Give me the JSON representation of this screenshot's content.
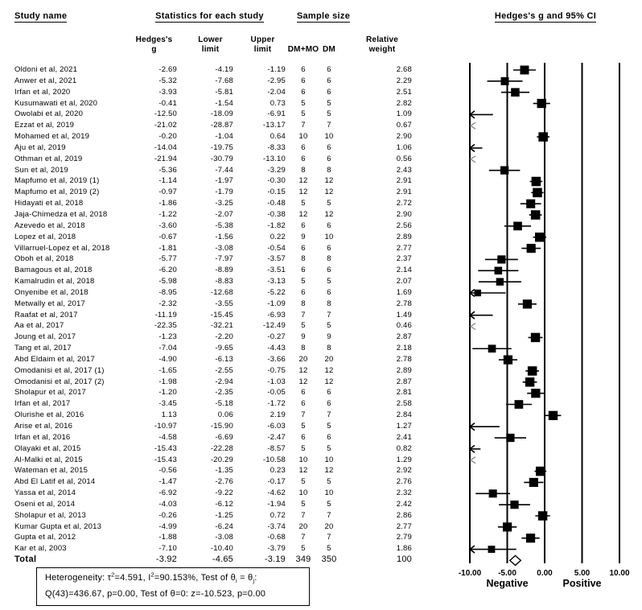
{
  "header": {
    "study_name": "Study name",
    "statistics": "Statistics for each study",
    "sample_size": "Sample size",
    "plot_title": "Hedges's g and 95% CI"
  },
  "subheaders": {
    "hedges_l1": "Hedges's",
    "hedges_l2": "g",
    "lower_l1": "Lower",
    "lower_l2": "limit",
    "upper_l1": "Upper",
    "upper_l2": "limit",
    "dm_mo": "DM+MO",
    "dm": "DM",
    "weight_l1": "Relative",
    "weight_l2": "weight"
  },
  "chart_data": {
    "type": "scatter",
    "subtype": "forest-plot",
    "title": "Hedges's g and 95% CI",
    "xlim": [
      -10,
      10
    ],
    "x_ticks": [
      "-10.00",
      "-5.00",
      "0.00",
      "5.00",
      "10.00"
    ],
    "negative_label": "Negative",
    "positive_label": "Positive",
    "legend_position": "none",
    "grid": false,
    "studies": [
      {
        "name": "Oldoni et al, 2021",
        "g": "-2.69",
        "lower": "-4.19",
        "upper": "-1.19",
        "dm_mo": "6",
        "dm": "6",
        "weight": "2.68"
      },
      {
        "name": "Anwer et al, 2021",
        "g": "-5.32",
        "lower": "-7.68",
        "upper": "-2.95",
        "dm_mo": "6",
        "dm": "6",
        "weight": "2.29"
      },
      {
        "name": "Irfan et al, 2020",
        "g": "-3.93",
        "lower": "-5.81",
        "upper": "-2.04",
        "dm_mo": "6",
        "dm": "6",
        "weight": "2.51"
      },
      {
        "name": "Kusumawati et al, 2020",
        "g": "-0.41",
        "lower": "-1.54",
        "upper": "0.73",
        "dm_mo": "5",
        "dm": "5",
        "weight": "2.82"
      },
      {
        "name": "Owolabi et al, 2020",
        "g": "-12.50",
        "lower": "-18.09",
        "upper": "-6.91",
        "dm_mo": "5",
        "dm": "5",
        "weight": "1.09"
      },
      {
        "name": "Ezzat et al, 2019",
        "g": "-21.02",
        "lower": "-28.87",
        "upper": "-13.17",
        "dm_mo": "7",
        "dm": "7",
        "weight": "0.67"
      },
      {
        "name": "Mohamed et al, 2019",
        "g": "-0.20",
        "lower": "-1.04",
        "upper": "0.64",
        "dm_mo": "10",
        "dm": "10",
        "weight": "2.90"
      },
      {
        "name": "Aju et al, 2019",
        "g": "-14.04",
        "lower": "-19.75",
        "upper": "-8.33",
        "dm_mo": "6",
        "dm": "6",
        "weight": "1.06"
      },
      {
        "name": "Othman et al, 2019",
        "g": "-21.94",
        "lower": "-30.79",
        "upper": "-13.10",
        "dm_mo": "6",
        "dm": "6",
        "weight": "0.56"
      },
      {
        "name": "Sun et al, 2019",
        "g": "-5.36",
        "lower": "-7.44",
        "upper": "-3.29",
        "dm_mo": "8",
        "dm": "8",
        "weight": "2.43"
      },
      {
        "name": "Mapfumo et al, 2019 (1)",
        "g": "-1.14",
        "lower": "-1.97",
        "upper": "-0.30",
        "dm_mo": "12",
        "dm": "12",
        "weight": "2.91"
      },
      {
        "name": "Mapfumo et al, 2019 (2)",
        "g": "-0.97",
        "lower": "-1.79",
        "upper": "-0.15",
        "dm_mo": "12",
        "dm": "12",
        "weight": "2.91"
      },
      {
        "name": "Hidayati et al, 2018",
        "g": "-1.86",
        "lower": "-3.25",
        "upper": "-0.48",
        "dm_mo": "5",
        "dm": "5",
        "weight": "2.72"
      },
      {
        "name": "Jaja-Chimedza et al, 2018",
        "g": "-1.22",
        "lower": "-2.07",
        "upper": "-0.38",
        "dm_mo": "12",
        "dm": "12",
        "weight": "2.90"
      },
      {
        "name": "Azevedo et al, 2018",
        "g": "-3.60",
        "lower": "-5.38",
        "upper": "-1.82",
        "dm_mo": "6",
        "dm": "6",
        "weight": "2.56"
      },
      {
        "name": "Lopez et al, 2018",
        "g": "-0.67",
        "lower": "-1.56",
        "upper": "0.22",
        "dm_mo": "9",
        "dm": "10",
        "weight": "2.89"
      },
      {
        "name": "Villarruel-Lopez et al, 2018",
        "g": "-1.81",
        "lower": "-3.08",
        "upper": "-0.54",
        "dm_mo": "6",
        "dm": "6",
        "weight": "2.77"
      },
      {
        "name": "Oboh et al, 2018",
        "g": "-5.77",
        "lower": "-7.97",
        "upper": "-3.57",
        "dm_mo": "8",
        "dm": "8",
        "weight": "2.37"
      },
      {
        "name": "Bamagous et al, 2018",
        "g": "-6.20",
        "lower": "-8.89",
        "upper": "-3.51",
        "dm_mo": "6",
        "dm": "6",
        "weight": "2.14"
      },
      {
        "name": "Kamalrudin et al, 2018",
        "g": "-5.98",
        "lower": "-8.83",
        "upper": "-3.13",
        "dm_mo": "5",
        "dm": "5",
        "weight": "2.07"
      },
      {
        "name": "Onyenibe et al, 2018",
        "g": "-8.95",
        "lower": "-12.68",
        "upper": "-5.22",
        "dm_mo": "6",
        "dm": "6",
        "weight": "1.69"
      },
      {
        "name": "Metwally et al, 2017",
        "g": "-2.32",
        "lower": "-3.55",
        "upper": "-1.09",
        "dm_mo": "8",
        "dm": "8",
        "weight": "2.78"
      },
      {
        "name": "Raafat et al, 2017",
        "g": "-11.19",
        "lower": "-15.45",
        "upper": "-6.93",
        "dm_mo": "7",
        "dm": "7",
        "weight": "1.49"
      },
      {
        "name": "Aa et al, 2017",
        "g": "-22.35",
        "lower": "-32.21",
        "upper": "-12.49",
        "dm_mo": "5",
        "dm": "5",
        "weight": "0.46"
      },
      {
        "name": "Joung et al, 2017",
        "g": "-1.23",
        "lower": "-2.20",
        "upper": "-0.27",
        "dm_mo": "9",
        "dm": "9",
        "weight": "2.87"
      },
      {
        "name": "Tang et al, 2017",
        "g": "-7.04",
        "lower": "-9.65",
        "upper": "-4.43",
        "dm_mo": "8",
        "dm": "8",
        "weight": "2.18"
      },
      {
        "name": "Abd Eldaim et al, 2017",
        "g": "-4.90",
        "lower": "-6.13",
        "upper": "-3.66",
        "dm_mo": "20",
        "dm": "20",
        "weight": "2.78"
      },
      {
        "name": "Omodanisi et al, 2017 (1)",
        "g": "-1.65",
        "lower": "-2.55",
        "upper": "-0.75",
        "dm_mo": "12",
        "dm": "12",
        "weight": "2.89"
      },
      {
        "name": "Omodanisi et al, 2017 (2)",
        "g": "-1.98",
        "lower": "-2.94",
        "upper": "-1.03",
        "dm_mo": "12",
        "dm": "12",
        "weight": "2.87"
      },
      {
        "name": "Sholapur et al, 2017",
        "g": "-1.20",
        "lower": "-2.35",
        "upper": "-0.05",
        "dm_mo": "6",
        "dm": "6",
        "weight": "2.81"
      },
      {
        "name": "Irfan et al, 2017",
        "g": "-3.45",
        "lower": "-5.18",
        "upper": "-1.72",
        "dm_mo": "6",
        "dm": "6",
        "weight": "2.58"
      },
      {
        "name": "Olurishe et al, 2016",
        "g": "1.13",
        "lower": "0.06",
        "upper": "2.19",
        "dm_mo": "7",
        "dm": "7",
        "weight": "2.84"
      },
      {
        "name": "Arise et al, 2016",
        "g": "-10.97",
        "lower": "-15.90",
        "upper": "-6.03",
        "dm_mo": "5",
        "dm": "5",
        "weight": "1.27"
      },
      {
        "name": "Irfan et al, 2016",
        "g": "-4.58",
        "lower": "-6.69",
        "upper": "-2.47",
        "dm_mo": "6",
        "dm": "6",
        "weight": "2.41"
      },
      {
        "name": "Olayaki et al, 2015",
        "g": "-15.43",
        "lower": "-22.28",
        "upper": "-8.57",
        "dm_mo": "5",
        "dm": "5",
        "weight": "0.82"
      },
      {
        "name": "Al-Malki et al, 2015",
        "g": "-15.43",
        "lower": "-20.29",
        "upper": "-10.58",
        "dm_mo": "10",
        "dm": "10",
        "weight": "1.29"
      },
      {
        "name": "Wateman et al, 2015",
        "g": "-0.56",
        "lower": "-1.35",
        "upper": "0.23",
        "dm_mo": "12",
        "dm": "12",
        "weight": "2.92"
      },
      {
        "name": "Abd El Latif et al, 2014",
        "g": "-1.47",
        "lower": "-2.76",
        "upper": "-0.17",
        "dm_mo": "5",
        "dm": "5",
        "weight": "2.76"
      },
      {
        "name": "Yassa et al, 2014",
        "g": "-6.92",
        "lower": "-9.22",
        "upper": "-4.62",
        "dm_mo": "10",
        "dm": "10",
        "weight": "2.32"
      },
      {
        "name": "Oseni et al, 2014",
        "g": "-4.03",
        "lower": "-6.12",
        "upper": "-1.94",
        "dm_mo": "5",
        "dm": "5",
        "weight": "2.42"
      },
      {
        "name": "Sholapur et al, 2013",
        "g": "-0.26",
        "lower": "-1.25",
        "upper": "0.72",
        "dm_mo": "7",
        "dm": "7",
        "weight": "2.86"
      },
      {
        "name": "Kumar Gupta et al, 2013",
        "g": "-4.99",
        "lower": "-6.24",
        "upper": "-3.74",
        "dm_mo": "20",
        "dm": "20",
        "weight": "2.77"
      },
      {
        "name": "Gupta et al, 2012",
        "g": "-1.88",
        "lower": "-3.08",
        "upper": "-0.68",
        "dm_mo": "7",
        "dm": "7",
        "weight": "2.79"
      },
      {
        "name": "Kar et al, 2003",
        "g": "-7.10",
        "lower": "-10.40",
        "upper": "-3.79",
        "dm_mo": "5",
        "dm": "5",
        "weight": "1.86"
      }
    ],
    "total": {
      "name": "Total",
      "g": "-3.92",
      "lower": "-4.65",
      "upper": "-3.19",
      "dm_mo": "349",
      "dm": "350",
      "weight": "100"
    }
  },
  "heterogeneity": {
    "l1a": "Heterogeneity: τ",
    "l1sup1": "2",
    "l1b": "=4.591, I",
    "l1sup2": "2",
    "l1c": "=90.153%, Test of θ",
    "l1sub1": "i",
    "l1d": " = θ",
    "l1sub2": "j",
    "l1e": ":",
    "line2": "Q(43)=436.67, p=0.00, Test of θ=0: z=-10.523, p=0.00"
  }
}
